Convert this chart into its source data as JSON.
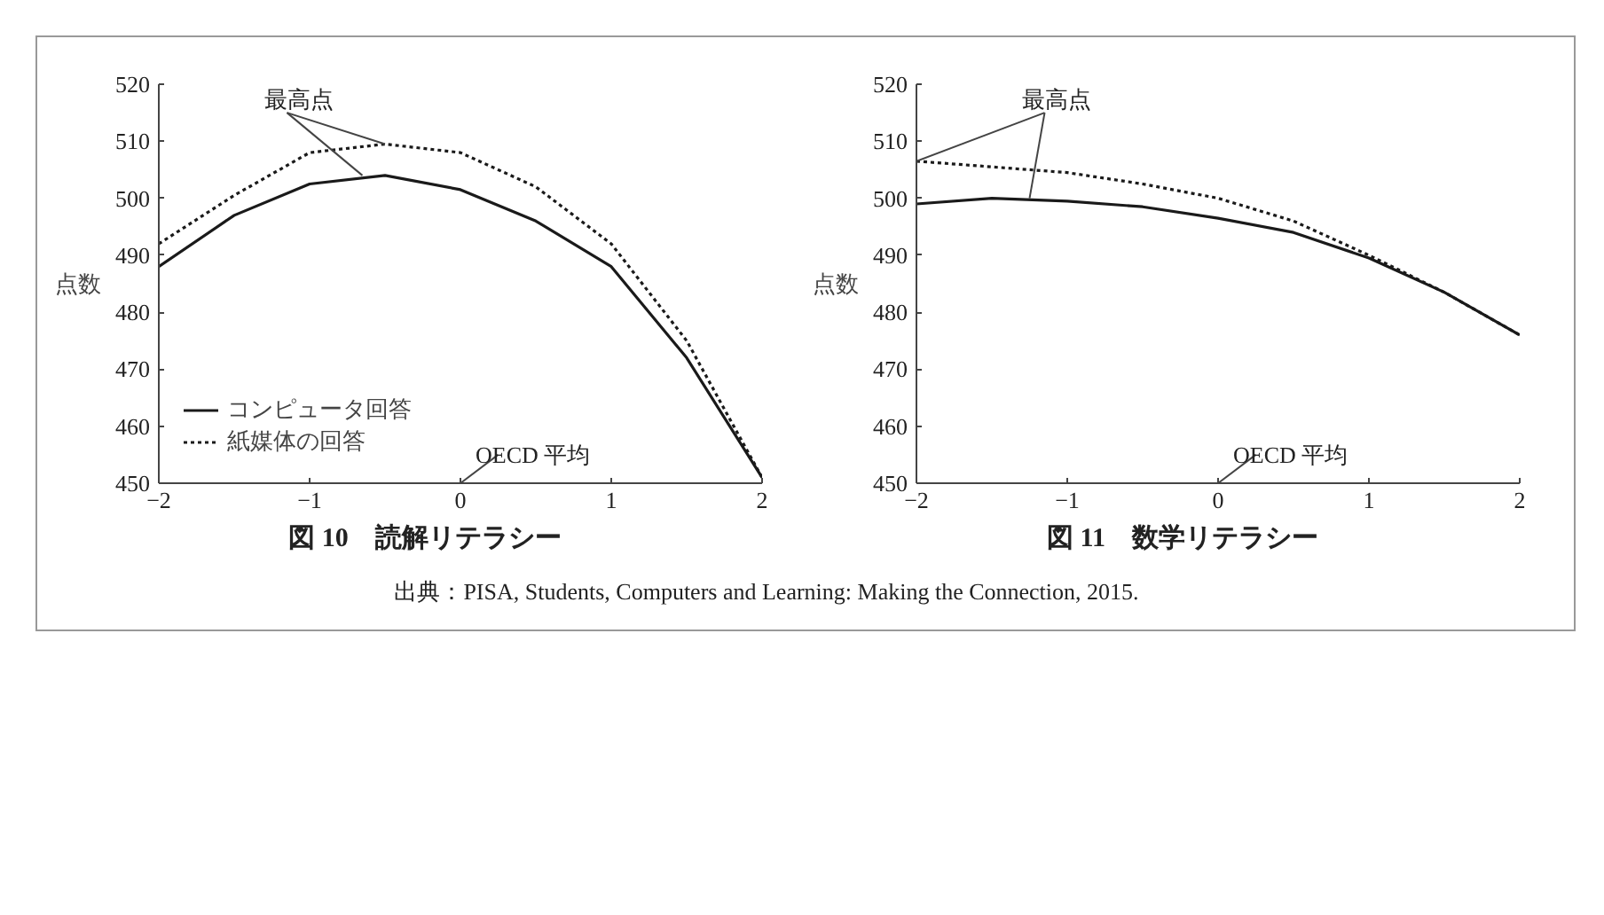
{
  "chart_data": [
    {
      "type": "line",
      "title": "図 10　読解リテラシー",
      "ylabel": "点数",
      "x": [
        -2,
        -1.5,
        -1,
        -0.5,
        0,
        0.5,
        1,
        1.5,
        2
      ],
      "xlim": [
        -2,
        2
      ],
      "ylim": [
        450,
        520
      ],
      "xticks": [
        -2,
        -1,
        0,
        1,
        2
      ],
      "yticks": [
        450,
        460,
        470,
        480,
        490,
        500,
        510,
        520
      ],
      "grid": false,
      "legend": "bottom left",
      "marker": "none",
      "series": [
        {
          "name": "コンピュータ回答",
          "color": "#1a1a1a",
          "line_style": "solid",
          "values": [
            488,
            497,
            502.5,
            504,
            501.5,
            496,
            488,
            472,
            451
          ]
        },
        {
          "name": "紙媒体の回答",
          "color": "#1a1a1a",
          "line_style": "dotted",
          "values": [
            492,
            500.5,
            508,
            509.5,
            508,
            502,
            492,
            475,
            451
          ]
        }
      ],
      "annotations": [
        {
          "text": "最高点",
          "x": -0.5,
          "y": 509.5
        },
        "OECD 平均",
        "出典：PISA, Students, Computers and Learning: Making the Connection, 2015."
      ]
    },
    {
      "type": "line",
      "title": "図 11　数学リテラシー",
      "ylabel": "点数",
      "x": [
        -2,
        -1.5,
        -1,
        -0.5,
        0,
        0.5,
        1,
        1.5,
        2
      ],
      "xlim": [
        -2,
        2
      ],
      "ylim": [
        450,
        520
      ],
      "xticks": [
        -2,
        -1,
        0,
        1,
        2
      ],
      "yticks": [
        450,
        460,
        470,
        480,
        490,
        500,
        510,
        520
      ],
      "grid": false,
      "marker": "none",
      "series": [
        {
          "color": "#1a1a1a",
          "line_style": "solid",
          "values": [
            499,
            500,
            499.5,
            498.5,
            496.5,
            494,
            489.5,
            483.5,
            476
          ]
        },
        {
          "color": "#1a1a1a",
          "line_style": "dotted",
          "values": [
            506.5,
            505.5,
            504.5,
            502.5,
            500,
            496,
            490,
            483.5,
            476
          ]
        }
      ],
      "annotations": [
        {
          "text": "最高点",
          "x": -2,
          "y": 506.5
        },
        "OECD 平均"
      ]
    }
  ]
}
